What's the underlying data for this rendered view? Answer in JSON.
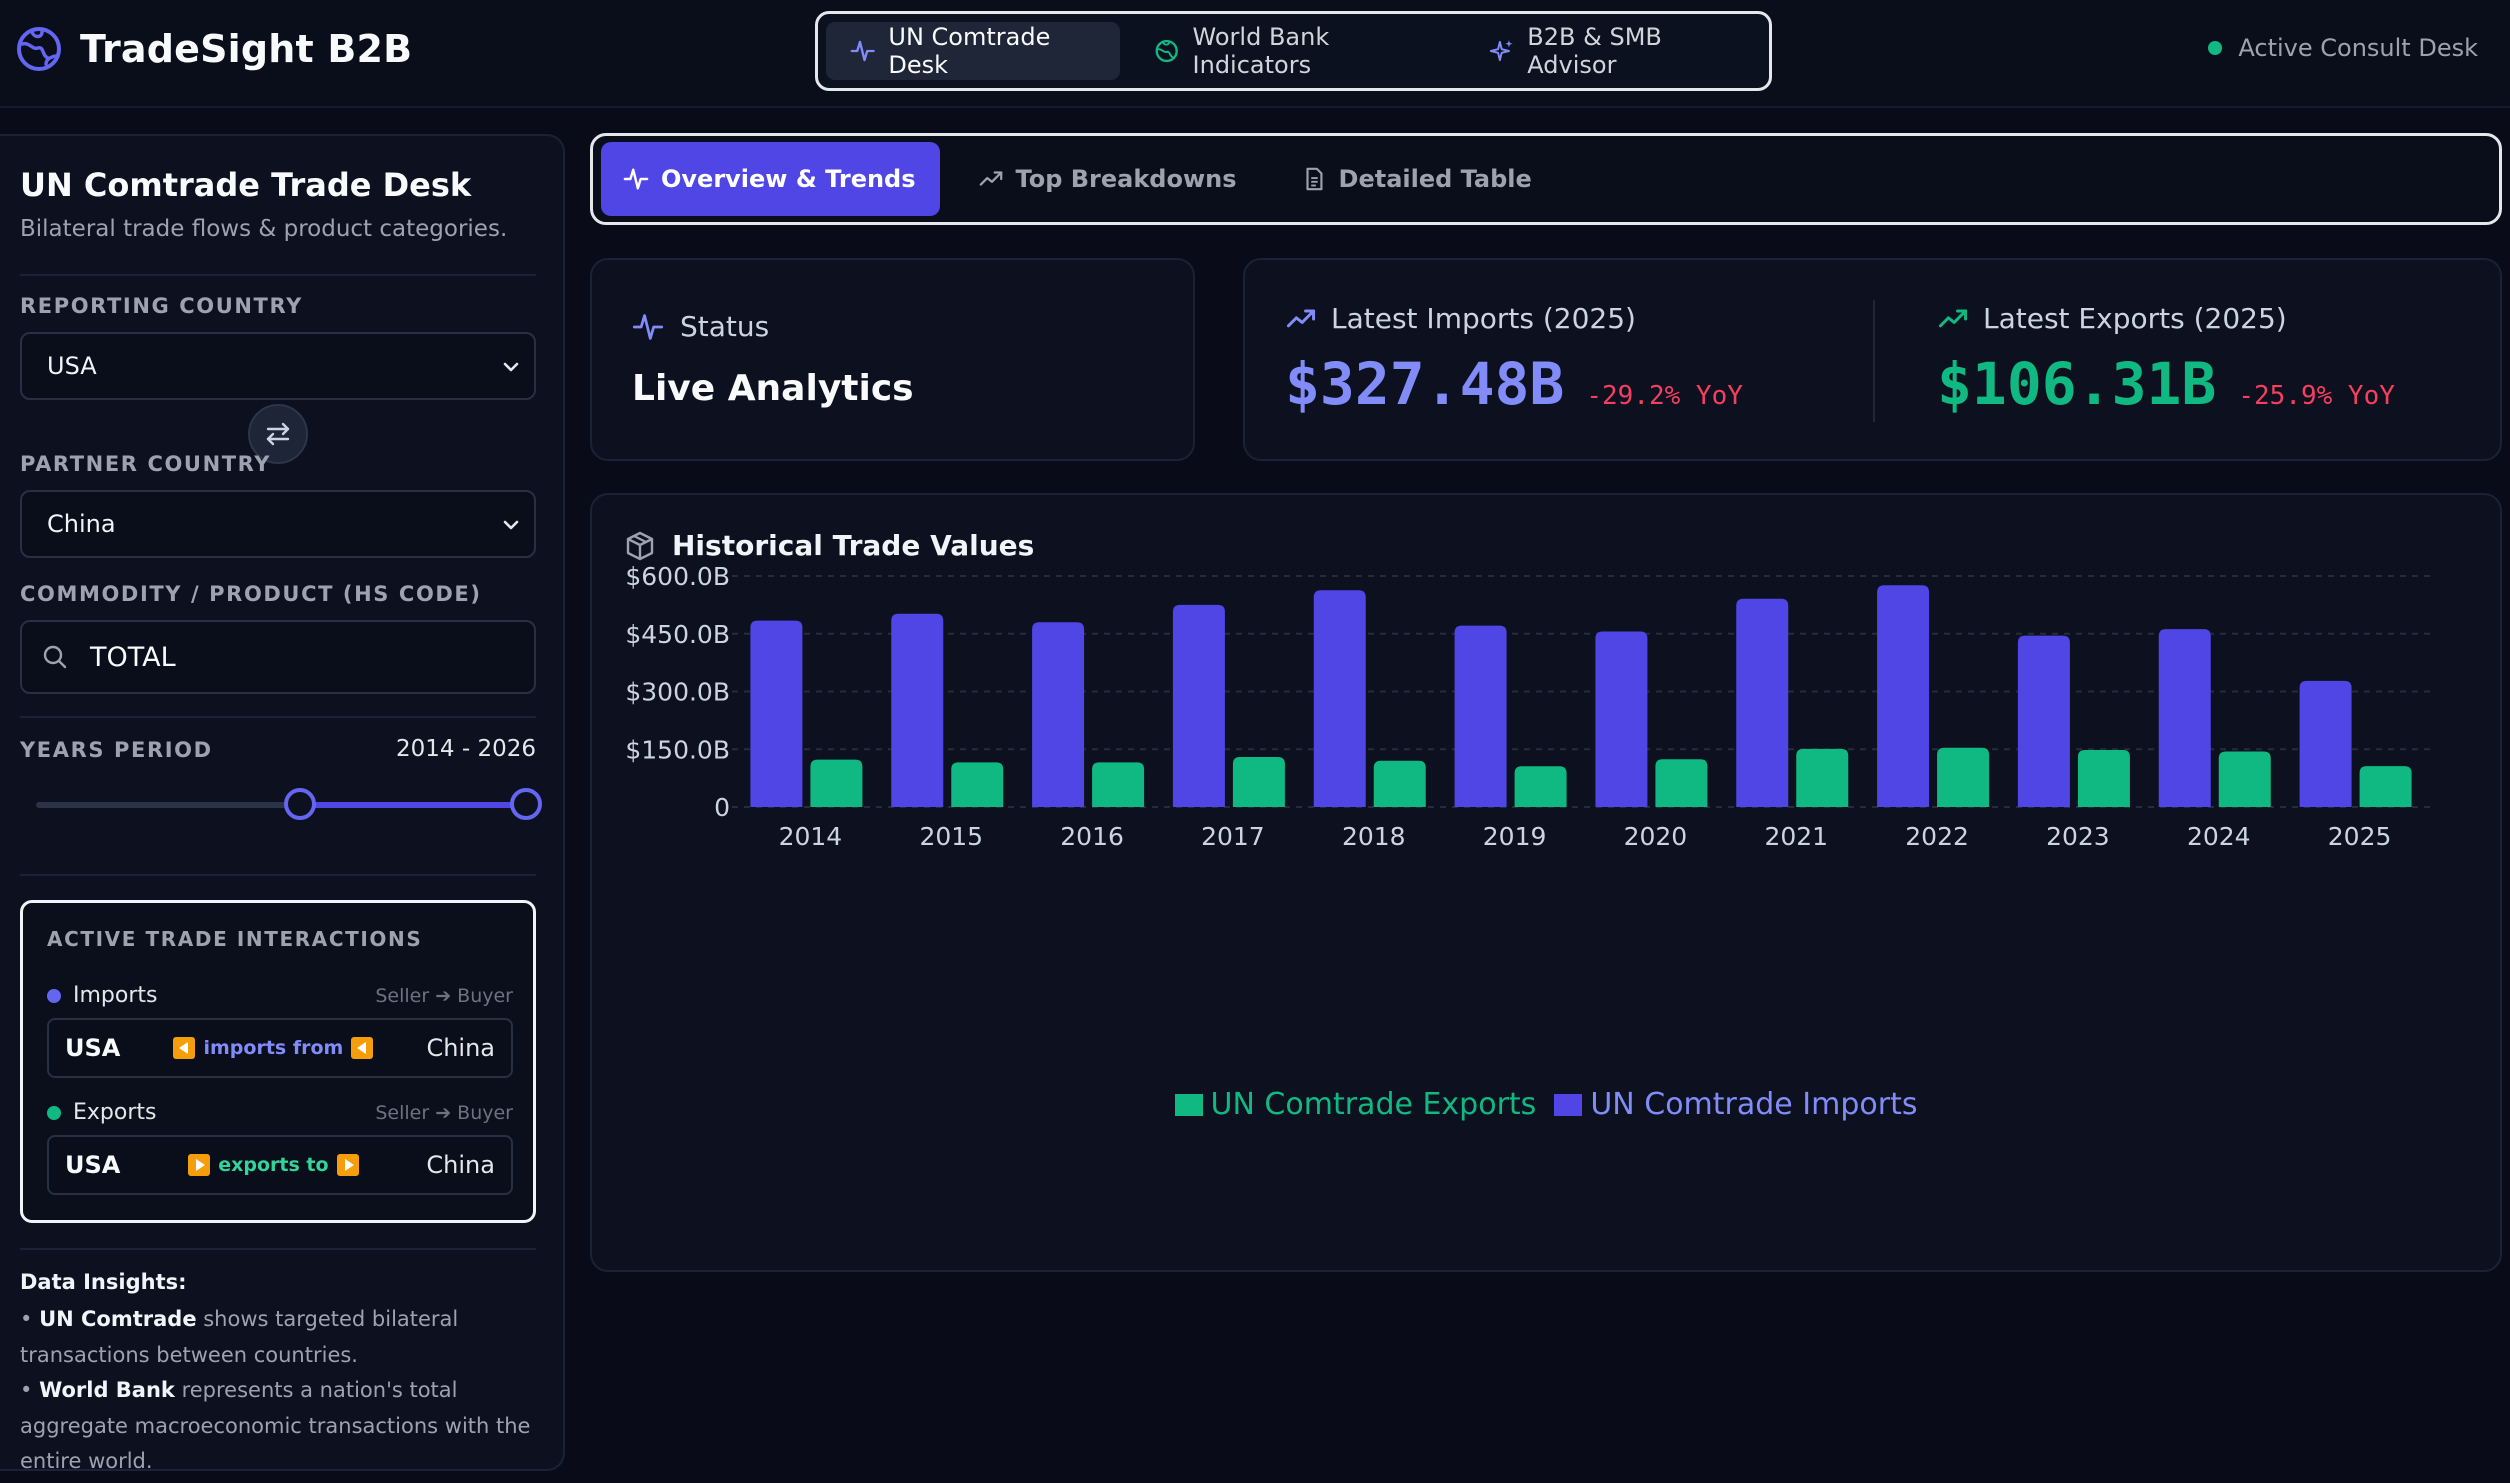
{
  "app": {
    "title": "TradeSight B2B"
  },
  "topnav": {
    "items": [
      {
        "label": "UN Comtrade Desk",
        "icon": "activity-icon",
        "active": true
      },
      {
        "label": "World Bank Indicators",
        "icon": "globe-icon",
        "active": false
      },
      {
        "label": "B2B & SMB Advisor",
        "icon": "sparkles-icon",
        "active": false
      }
    ],
    "status": "Active Consult Desk"
  },
  "sidebar": {
    "title": "UN Comtrade Trade Desk",
    "subtitle": "Bilateral trade flows & product categories.",
    "reporting_label": "REPORTING COUNTRY",
    "reporting_value": "USA",
    "partner_label": "PARTNER COUNTRY",
    "partner_value": "China",
    "commodity_label": "COMMODITY / PRODUCT (HS CODE)",
    "commodity_value": "TOTAL",
    "years_label": "YEARS PERIOD",
    "years_value": "2014 - 2026",
    "years_slider": {
      "min": 2000,
      "max": 2026,
      "from": 2014,
      "to": 2026
    },
    "interactions": {
      "title": "ACTIVE TRADE INTERACTIONS",
      "imports": {
        "label": "Imports",
        "hint": "Seller ➔ Buyer",
        "from": "USA",
        "verb": "imports from",
        "to": "China"
      },
      "exports": {
        "label": "Exports",
        "hint": "Seller ➔ Buyer",
        "from": "USA",
        "verb": "exports to",
        "to": "China"
      }
    },
    "insights": {
      "title": "Data Insights:",
      "line1_bold": "UN Comtrade",
      "line1_rest": " shows targeted bilateral transactions between countries.",
      "line2_bold": "World Bank",
      "line2_rest": " represents a nation's total aggregate macroeconomic transactions with the entire world."
    }
  },
  "tabs": [
    {
      "label": "Overview & Trends",
      "icon": "activity-icon",
      "active": true
    },
    {
      "label": "Top Breakdowns",
      "icon": "trending-up-icon",
      "active": false
    },
    {
      "label": "Detailed Table",
      "icon": "document-icon",
      "active": false
    }
  ],
  "status_card": {
    "label": "Status",
    "value": "Live Analytics"
  },
  "kpis": {
    "imports": {
      "label": "Latest Imports (2025)",
      "value": "$327.48B",
      "yoy": "-29.2% YoY"
    },
    "exports": {
      "label": "Latest Exports (2025)",
      "value": "$106.31B",
      "yoy": "-25.9% YoY"
    }
  },
  "chart_section": {
    "title": "Historical Trade Values"
  },
  "colors": {
    "imports": "#4f46e5",
    "exports": "#10b981",
    "imports_text": "#818cf8",
    "exports_text": "#34d399",
    "negative": "#f43f5e"
  },
  "chart_data": {
    "type": "bar",
    "categories": [
      "2014",
      "2015",
      "2016",
      "2017",
      "2018",
      "2019",
      "2020",
      "2021",
      "2022",
      "2023",
      "2024",
      "2025"
    ],
    "series": [
      {
        "name": "UN Comtrade Imports",
        "values": [
          484,
          502,
          480,
          525,
          563,
          471,
          456,
          541,
          576,
          445,
          462,
          327.48
        ]
      },
      {
        "name": "UN Comtrade Exports",
        "values": [
          123,
          116,
          116,
          130,
          120,
          106,
          124,
          151,
          154,
          148,
          144,
          106.31
        ]
      }
    ],
    "yticks": [
      "0",
      "$150.0B",
      "$300.0B",
      "$450.0B",
      "$600.0B"
    ],
    "ylim": [
      0,
      600
    ],
    "grid": true,
    "legend_position": "bottom",
    "legend_order": [
      "UN Comtrade Exports",
      "UN Comtrade Imports"
    ]
  }
}
